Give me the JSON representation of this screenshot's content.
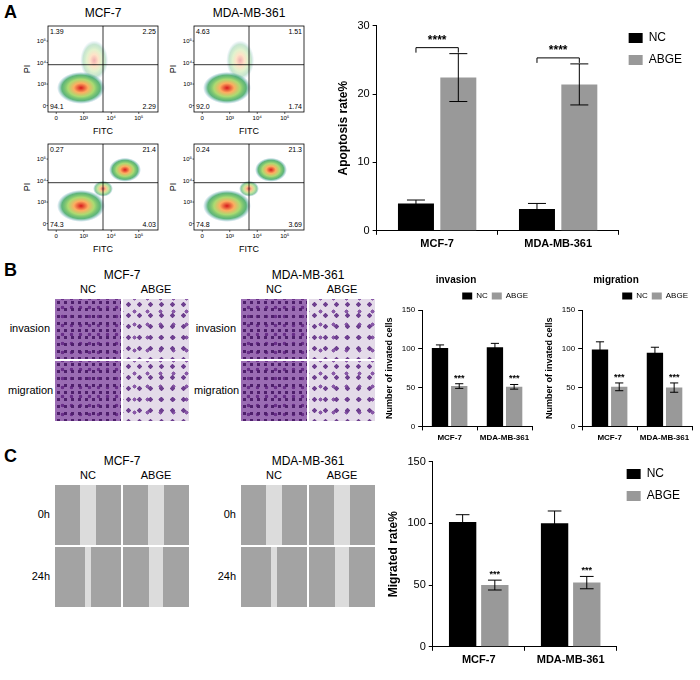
{
  "panel_letters": [
    "A",
    "B",
    "C"
  ],
  "flow_plots": [
    {
      "title": "MCF-7",
      "x_label": "FITC",
      "y_label": "PI",
      "axis_ticks": [
        "0",
        "10³",
        "10⁴",
        "10⁵"
      ],
      "quadrants": {
        "upper_left": "1.39",
        "upper_right": "2.25",
        "lower_left": "94.1",
        "lower_right": "2.29"
      }
    },
    {
      "title": "MDA-MB-361",
      "x_label": "FITC",
      "y_label": "PI",
      "axis_ticks": [
        "0",
        "10³",
        "10⁴",
        "10⁵"
      ],
      "quadrants": {
        "upper_left": "4.63",
        "upper_right": "1.51",
        "lower_left": "92.0",
        "lower_right": "1.74"
      }
    },
    {
      "x_label": "FITC",
      "y_label": "PI",
      "axis_ticks": [
        "0",
        "10³",
        "10⁴",
        "10⁵"
      ],
      "quadrants": {
        "upper_left": "0.27",
        "upper_right": "21.4",
        "lower_left": "74.3",
        "lower_right": "4.03"
      }
    },
    {
      "x_label": "FITC",
      "y_label": "PI",
      "axis_ticks": [
        "0",
        "10³",
        "10⁴",
        "10⁵"
      ],
      "quadrants": {
        "upper_left": "0.24",
        "upper_right": "21.3",
        "lower_left": "74.8",
        "lower_right": "3.69"
      }
    }
  ],
  "micrographs": [
    {
      "title": "MCF-7",
      "columns": [
        "NC",
        "ABGE"
      ],
      "rows": [
        "invasion",
        "migration"
      ]
    },
    {
      "title": "MDA-MB-361",
      "columns": [
        "NC",
        "ABGE"
      ],
      "rows": [
        "invasion",
        "migration"
      ]
    },
    {
      "title": "MCF-7",
      "columns": [
        "NC",
        "ABGE"
      ],
      "rows": [
        "0h",
        "24h"
      ]
    },
    {
      "title": "MDA-MB-361",
      "columns": [
        "NC",
        "ABGE"
      ],
      "rows": [
        "0h",
        "24h"
      ]
    }
  ],
  "chart_data": [
    {
      "type": "bar",
      "categories": [
        "MCF-7",
        "MDA-MB-361"
      ],
      "y_label": "Apoptosis rate%",
      "series": [
        {
          "name": "NC",
          "color": "#000000",
          "values": [
            4.0,
            3.2
          ],
          "errors": [
            0.5,
            0.8
          ]
        },
        {
          "name": "ABGE",
          "color": "#999999",
          "values": [
            22.4,
            21.4
          ],
          "errors": [
            3.5,
            3.0
          ]
        }
      ],
      "ylim": [
        0,
        30
      ],
      "yticks": [
        0,
        10,
        20,
        30
      ],
      "grid": false,
      "legend": "right",
      "significance": [
        {
          "label": "****",
          "category": "MCF-7"
        },
        {
          "label": "****",
          "category": "MDA-MB-361"
        }
      ]
    },
    {
      "type": "bar",
      "title": "invasion",
      "categories": [
        "MCF-7",
        "MDA-MB-361"
      ],
      "y_label": "Number of invated cells",
      "series": [
        {
          "name": "NC",
          "color": "#000000",
          "values": [
            101,
            102
          ],
          "errors": [
            4,
            5
          ]
        },
        {
          "name": "ABGE",
          "color": "#999999",
          "values": [
            52,
            51
          ],
          "errors": [
            3,
            3
          ]
        }
      ],
      "ylim": [
        0,
        150
      ],
      "yticks": [
        0,
        50,
        100,
        150
      ],
      "grid": false,
      "legend": "top",
      "significance": [
        {
          "label": "***",
          "category": "MCF-7",
          "series": "ABGE"
        },
        {
          "label": "***",
          "category": "MDA-MB-361",
          "series": "ABGE"
        }
      ]
    },
    {
      "type": "bar",
      "title": "migration",
      "categories": [
        "MCF-7",
        "MDA-MB-361"
      ],
      "y_label": "Number of invated cells",
      "series": [
        {
          "name": "NC",
          "color": "#000000",
          "values": [
            99,
            95
          ],
          "errors": [
            10,
            7
          ]
        },
        {
          "name": "ABGE",
          "color": "#999999",
          "values": [
            51,
            50
          ],
          "errors": [
            5,
            6
          ]
        }
      ],
      "ylim": [
        0,
        150
      ],
      "yticks": [
        0,
        50,
        100,
        150
      ],
      "grid": false,
      "legend": "top",
      "significance": [
        {
          "label": "***",
          "category": "MCF-7",
          "series": "ABGE"
        },
        {
          "label": "***",
          "category": "MDA-MB-361",
          "series": "ABGE"
        }
      ]
    },
    {
      "type": "bar",
      "categories": [
        "MCF-7",
        "MDA-MB-361"
      ],
      "y_label": "Migrated rate%",
      "series": [
        {
          "name": "NC",
          "color": "#000000",
          "values": [
            101,
            100
          ],
          "errors": [
            6,
            10
          ]
        },
        {
          "name": "ABGE",
          "color": "#999999",
          "values": [
            50,
            52
          ],
          "errors": [
            4,
            5
          ]
        }
      ],
      "ylim": [
        0,
        150
      ],
      "yticks": [
        0,
        50,
        100,
        150
      ],
      "grid": false,
      "legend": "right",
      "significance": [
        {
          "label": "***",
          "category": "MCF-7",
          "series": "ABGE"
        },
        {
          "label": "***",
          "category": "MDA-MB-361",
          "series": "ABGE"
        }
      ]
    }
  ]
}
